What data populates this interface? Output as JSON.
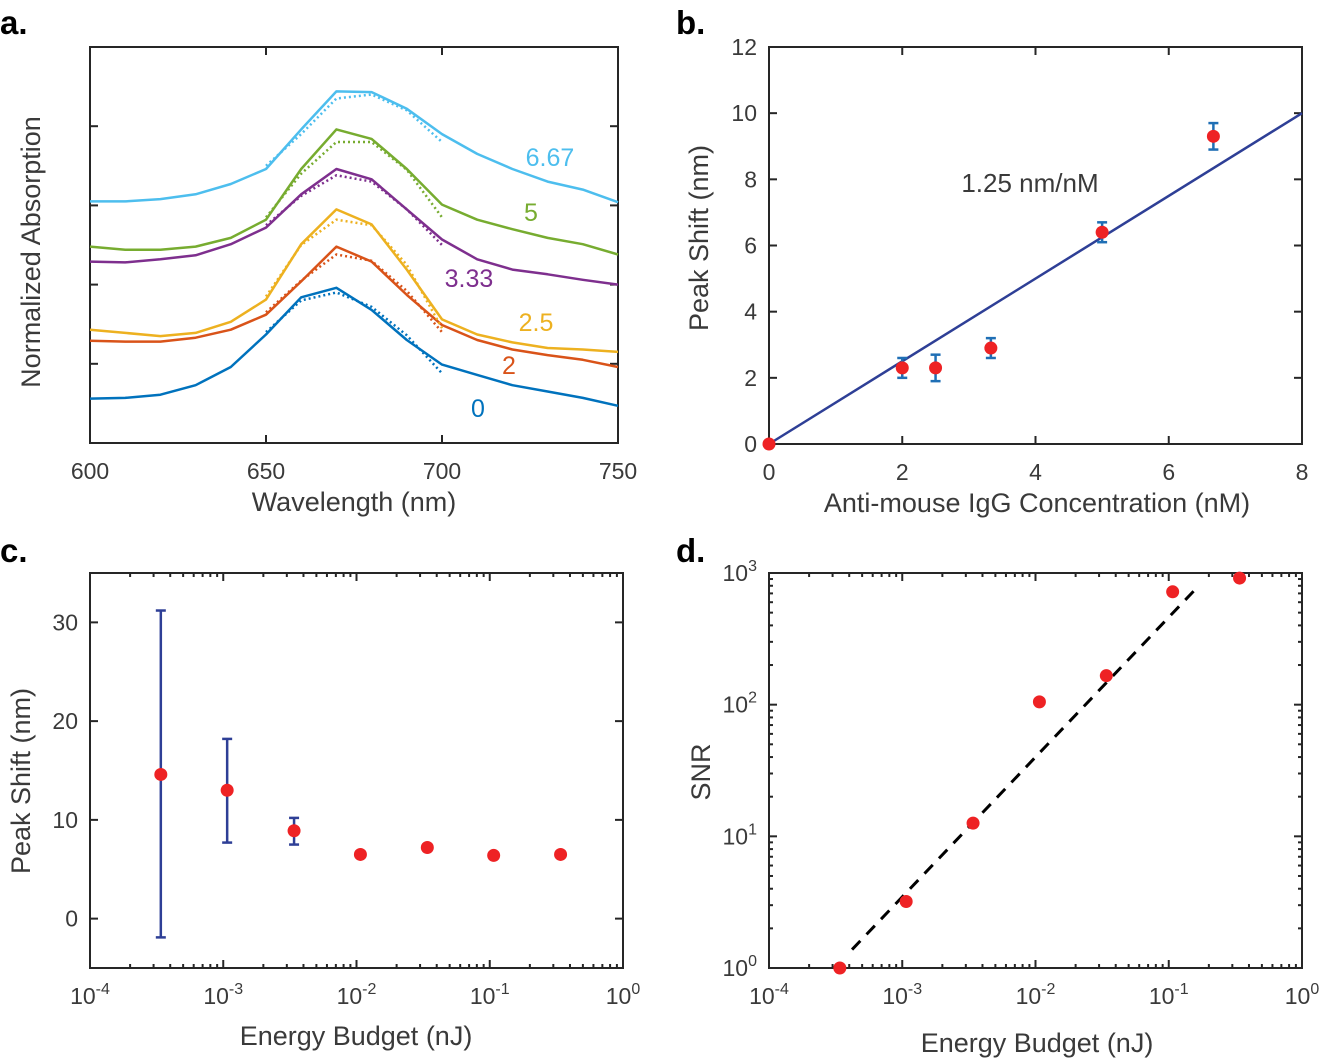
{
  "chart_data": [
    {
      "panel": "a.",
      "type": "line",
      "xlabel": "Wavelength (nm)",
      "ylabel": "Normalized Absorption",
      "xlim": [
        600,
        750
      ],
      "ylim": [
        0,
        5
      ],
      "xticks": [
        "600",
        "650",
        "700",
        "750"
      ],
      "yticks_unlabeled": [
        1,
        2,
        3,
        4
      ],
      "x": [
        600,
        610,
        620,
        630,
        640,
        650,
        660,
        670,
        680,
        690,
        700,
        710,
        720,
        730,
        740,
        750
      ],
      "fit_x": [
        650,
        660,
        670,
        680,
        690,
        700
      ],
      "series": [
        {
          "name": "0",
          "color": "#0072BD",
          "values": [
            0.56,
            0.57,
            0.61,
            0.73,
            0.96,
            1.37,
            1.84,
            1.96,
            1.68,
            1.3,
            0.99,
            0.86,
            0.73,
            0.65,
            0.57,
            0.47
          ],
          "fit": [
            1.4,
            1.8,
            1.9,
            1.72,
            1.36,
            0.88
          ]
        },
        {
          "name": "2",
          "color": "#D95319",
          "values": [
            1.29,
            1.28,
            1.28,
            1.33,
            1.43,
            1.62,
            2.04,
            2.48,
            2.29,
            1.87,
            1.49,
            1.3,
            1.18,
            1.11,
            1.05,
            0.96
          ],
          "fit": [
            1.65,
            2.05,
            2.38,
            2.3,
            1.92,
            1.4
          ]
        },
        {
          "name": "2.5",
          "color": "#EDB120",
          "values": [
            1.43,
            1.39,
            1.35,
            1.39,
            1.53,
            1.81,
            2.51,
            2.95,
            2.76,
            2.19,
            1.56,
            1.37,
            1.27,
            1.2,
            1.18,
            1.15
          ],
          "fit": [
            1.85,
            2.5,
            2.82,
            2.75,
            2.25,
            1.45
          ]
        },
        {
          "name": "3.33",
          "color": "#7E2F8E",
          "values": [
            2.29,
            2.28,
            2.32,
            2.37,
            2.51,
            2.72,
            3.14,
            3.46,
            3.33,
            2.95,
            2.57,
            2.32,
            2.19,
            2.13,
            2.06,
            2.0
          ],
          "fit": [
            2.75,
            3.12,
            3.38,
            3.3,
            2.95,
            2.5
          ]
        },
        {
          "name": "5",
          "color": "#77AC30",
          "values": [
            2.48,
            2.44,
            2.44,
            2.48,
            2.59,
            2.82,
            3.46,
            3.96,
            3.84,
            3.46,
            3.01,
            2.82,
            2.7,
            2.59,
            2.51,
            2.38
          ],
          "fit": [
            2.85,
            3.4,
            3.8,
            3.8,
            3.45,
            2.85
          ]
        },
        {
          "name": "6.67",
          "color": "#4DBEEE",
          "values": [
            3.05,
            3.05,
            3.08,
            3.14,
            3.27,
            3.46,
            3.96,
            4.44,
            4.43,
            4.22,
            3.9,
            3.65,
            3.46,
            3.3,
            3.2,
            3.04
          ],
          "fit": [
            3.5,
            3.9,
            4.35,
            4.4,
            4.2,
            3.8
          ]
        }
      ]
    },
    {
      "panel": "b.",
      "type": "scatter",
      "xlabel": "Anti-mouse IgG Concentration (nM)",
      "ylabel": "Peak Shift (nm)",
      "xlim": [
        0,
        8
      ],
      "ylim": [
        0,
        12
      ],
      "xticks": [
        "0",
        "2",
        "4",
        "6",
        "8"
      ],
      "yticks": [
        "0",
        "2",
        "4",
        "6",
        "8",
        "10",
        "12"
      ],
      "annotation": "1.25 nm/nM",
      "points": {
        "x": [
          0,
          2,
          2.5,
          3.33,
          5,
          6.67
        ],
        "y": [
          0,
          2.3,
          2.3,
          2.9,
          6.4,
          9.3
        ],
        "err": [
          0,
          0.3,
          0.4,
          0.3,
          0.3,
          0.4
        ]
      },
      "fit_line": {
        "x": [
          0,
          8
        ],
        "y": [
          0,
          10
        ]
      },
      "colors": {
        "points": "#EE2224",
        "errorbars": "#1F6FB5",
        "fit": "#2E3F96"
      }
    },
    {
      "panel": "c.",
      "type": "scatter",
      "xlabel": "Energy Budget (nJ)",
      "ylabel": "Peak Shift (nm)",
      "xscale": "log",
      "xlim": [
        0.0001,
        1
      ],
      "ylim": [
        -5,
        35
      ],
      "xticks": [
        [
          "10",
          "-4"
        ],
        [
          "10",
          "-3"
        ],
        [
          "10",
          "-2"
        ],
        [
          "10",
          "-1"
        ],
        [
          "10",
          "0"
        ]
      ],
      "yticks": [
        "0",
        "10",
        "20",
        "30"
      ],
      "points": {
        "x": [
          0.00034,
          0.00107,
          0.0034,
          0.0107,
          0.034,
          0.107,
          0.34
        ],
        "y": [
          14.6,
          13.0,
          8.9,
          6.5,
          7.2,
          6.4,
          6.5
        ],
        "err_low": [
          16.5,
          5.3,
          1.4,
          0.3,
          0.3,
          0.3,
          0.3
        ],
        "err_high": [
          16.6,
          5.2,
          1.3,
          0.3,
          0.3,
          0.3,
          0.3
        ]
      },
      "colors": {
        "points": "#EE2224",
        "errorbars": "#2E3F96"
      }
    },
    {
      "panel": "d.",
      "type": "scatter",
      "xlabel": "Energy Budget (nJ)",
      "ylabel": "SNR",
      "xscale": "log",
      "yscale": "log",
      "xlim": [
        0.0001,
        1
      ],
      "ylim": [
        1,
        1000
      ],
      "xticks": [
        [
          "10",
          "-4"
        ],
        [
          "10",
          "-3"
        ],
        [
          "10",
          "-2"
        ],
        [
          "10",
          "-1"
        ],
        [
          "10",
          "0"
        ]
      ],
      "yticks": [
        [
          "10",
          "0"
        ],
        [
          "10",
          "1"
        ],
        [
          "10",
          "2"
        ],
        [
          "10",
          "3"
        ]
      ],
      "points": {
        "x": [
          0.00034,
          0.00107,
          0.0034,
          0.0107,
          0.034,
          0.107,
          0.34
        ],
        "y": [
          1,
          3.2,
          12.6,
          105,
          166,
          720,
          915
        ]
      },
      "fit_line": {
        "x": [
          0.00042,
          0.17
        ],
        "y": [
          1.38,
          810
        ]
      },
      "colors": {
        "points": "#EE2224",
        "fit": "#000000"
      }
    }
  ]
}
